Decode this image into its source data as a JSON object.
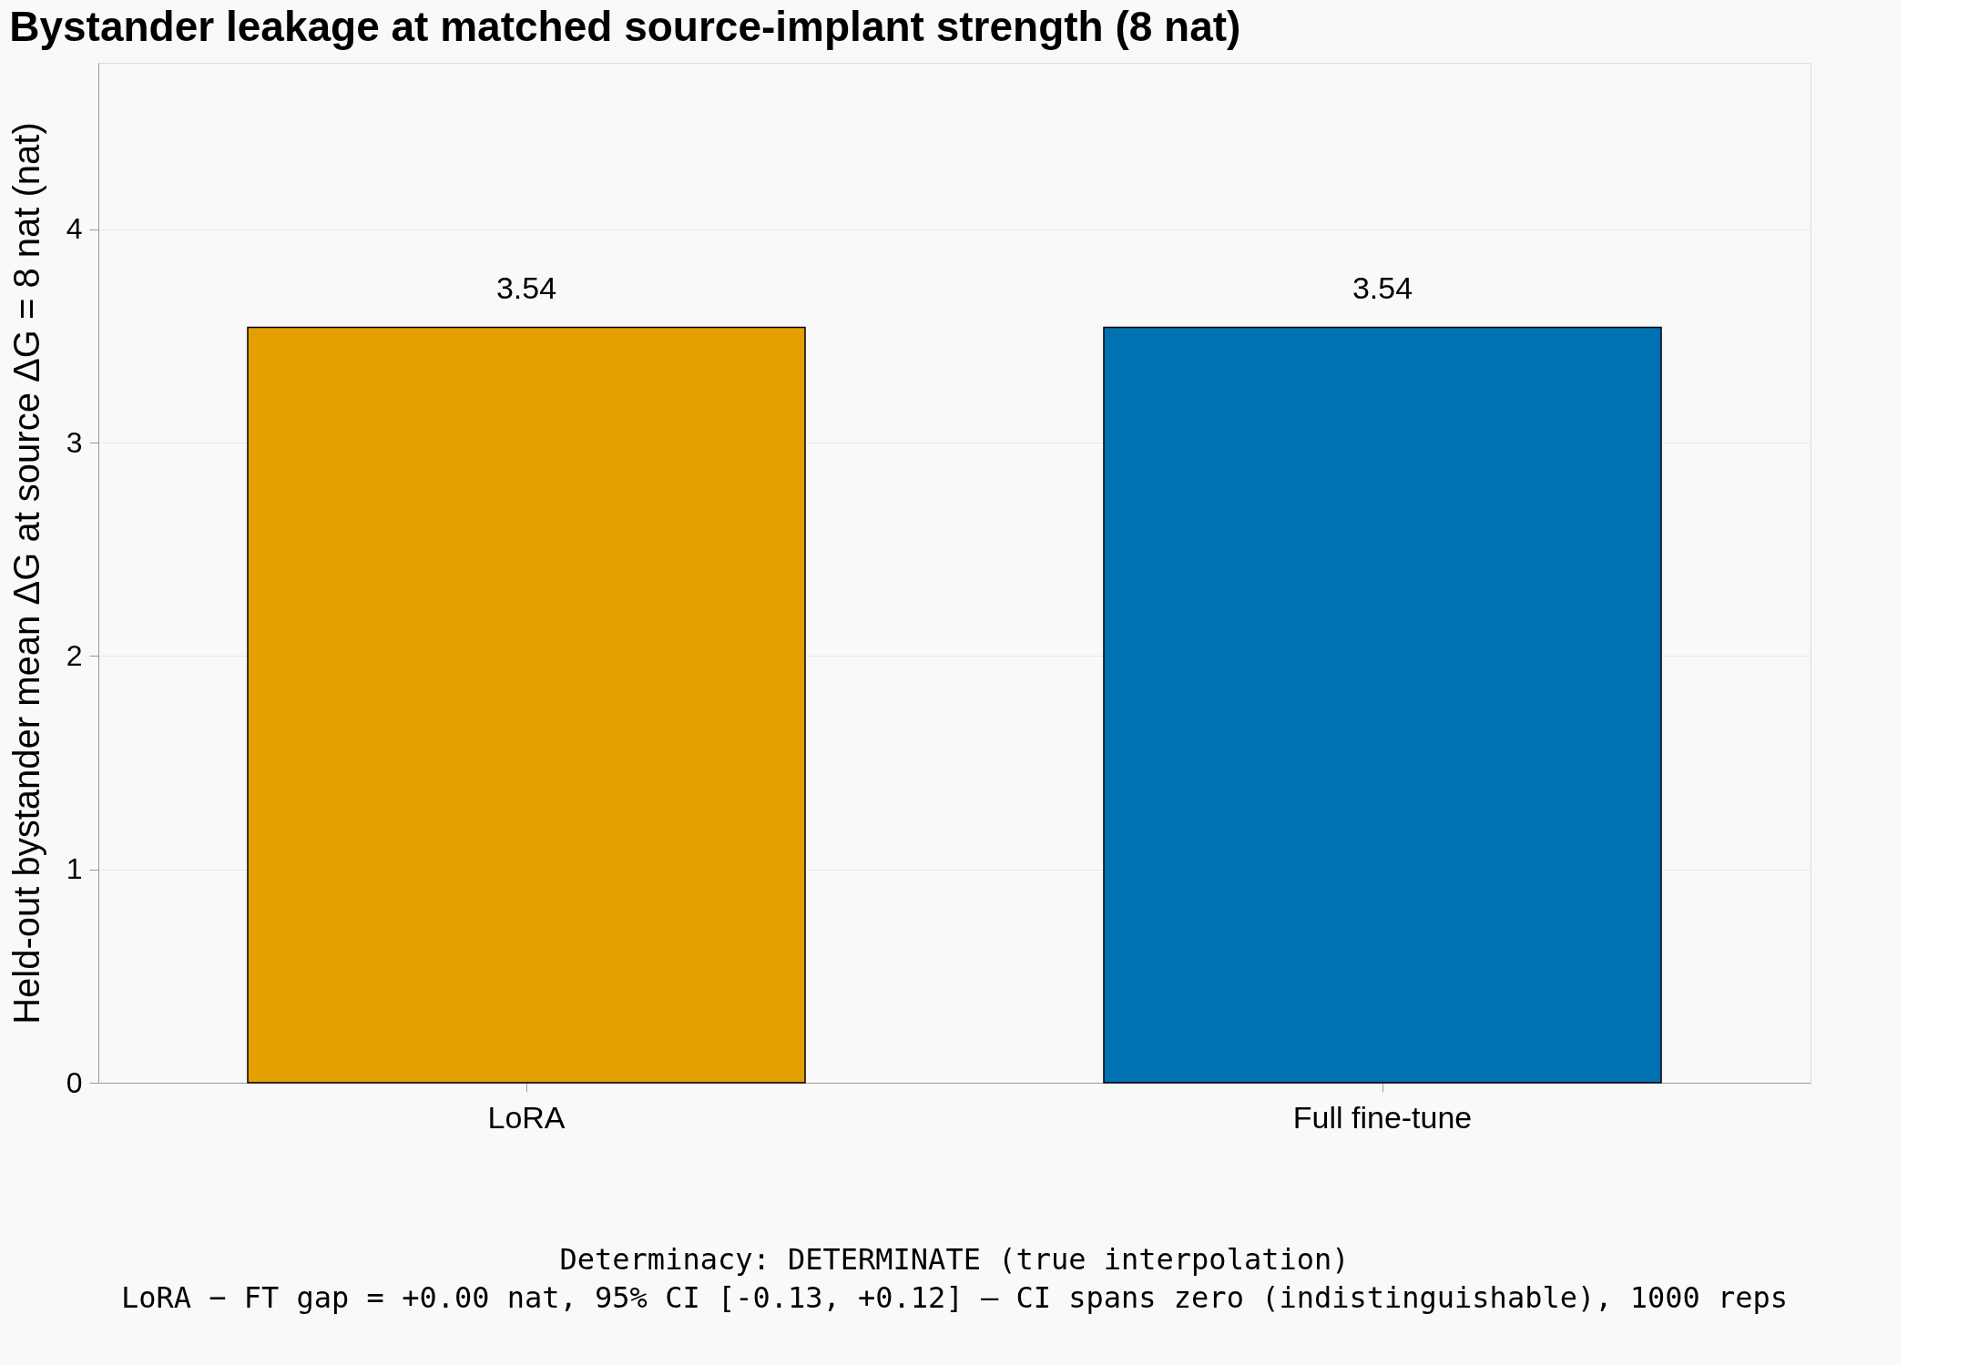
{
  "chart_data": {
    "type": "bar",
    "title": "Bystander leakage at matched source-implant strength (8 nat)",
    "ylabel": "Held-out bystander mean ΔG at source ΔG = 8 nat (nat)",
    "categories": [
      "LoRA",
      "Full fine-tune"
    ],
    "values": [
      3.54,
      3.54
    ],
    "colors": [
      "#e69f00",
      "#0072b2"
    ],
    "ylim": [
      0,
      4.78
    ],
    "yticks": [
      0,
      1,
      2,
      3,
      4
    ],
    "grid": "y",
    "data_labels": true,
    "annotations": [
      "Determinacy: DETERMINATE (true interpolation)",
      "LoRA − FT gap = +0.00 nat, 95% CI [-0.13, +0.12] — CI spans zero (indistinguishable), 1000 reps"
    ]
  }
}
